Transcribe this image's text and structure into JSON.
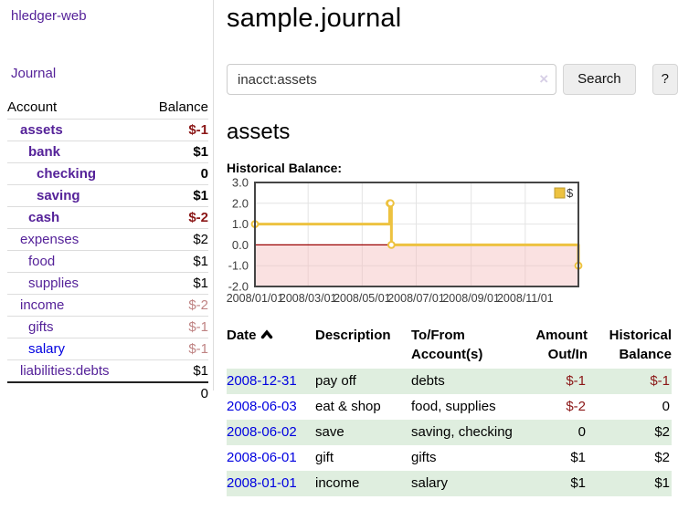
{
  "brand": "hledger-web",
  "sidebar": {
    "journal_link": "Journal",
    "header": {
      "account": "Account",
      "balance": "Balance"
    },
    "accounts": [
      {
        "name": "assets",
        "indent": 1,
        "bold": true,
        "balance": "$-1",
        "neg": "strong"
      },
      {
        "name": "bank",
        "indent": 2,
        "bold": true,
        "balance": "$1",
        "neg": "none"
      },
      {
        "name": "checking",
        "indent": 3,
        "bold": true,
        "balance": "0",
        "neg": "none"
      },
      {
        "name": "saving",
        "indent": 3,
        "bold": true,
        "balance": "$1",
        "neg": "none"
      },
      {
        "name": "cash",
        "indent": 2,
        "bold": true,
        "balance": "$-2",
        "neg": "strong"
      },
      {
        "name": "expenses",
        "indent": 1,
        "bold": false,
        "balance": "$2",
        "neg": "none"
      },
      {
        "name": "food",
        "indent": 2,
        "bold": false,
        "balance": "$1",
        "neg": "none"
      },
      {
        "name": "supplies",
        "indent": 2,
        "bold": false,
        "balance": "$1",
        "neg": "none"
      },
      {
        "name": "income",
        "indent": 1,
        "bold": false,
        "balance": "$-2",
        "neg": "soft"
      },
      {
        "name": "gifts",
        "indent": 2,
        "bold": false,
        "balance": "$-1",
        "neg": "soft"
      },
      {
        "name": "salary",
        "indent": 2,
        "bold": false,
        "balance": "$-1",
        "neg": "soft",
        "blue": true
      },
      {
        "name": "liabilities:debts",
        "indent": 1,
        "bold": false,
        "balance": "$1",
        "neg": "none"
      }
    ],
    "total": "0"
  },
  "main": {
    "title": "sample.journal",
    "search": {
      "value": "inacct:assets",
      "clear_icon": "×",
      "search_button": "Search",
      "help_button": "?"
    },
    "account_heading": "assets",
    "chart_title": "Historical Balance:"
  },
  "chart_data": {
    "type": "line",
    "step": true,
    "title": "Historical Balance of assets",
    "legend": [
      {
        "label": "$",
        "color": "#EDC240"
      }
    ],
    "x": [
      "2008-01-01",
      "2008-06-01",
      "2008-06-02",
      "2008-06-03",
      "2008-12-31"
    ],
    "y": [
      1,
      2,
      2,
      0,
      -1
    ],
    "x_ticks": [
      "2008/01/01",
      "2008/03/01",
      "2008/05/01",
      "2008/07/01",
      "2008/09/01",
      "2008/11/01"
    ],
    "y_ticks": [
      "3.0",
      "2.0",
      "1.0",
      "0.0",
      "-1.0",
      "-2.0"
    ],
    "xlim": [
      "2008-01-01",
      "2008-12-31"
    ],
    "ylim": [
      -2,
      3
    ],
    "grid": true,
    "legend_position": "top-right",
    "line_color": "#EDC240",
    "zero_line_color": "#9A0000",
    "negative_fill": "#F5BCBC"
  },
  "register": {
    "columns": [
      {
        "line1": "Date",
        "line2": "",
        "align": "left",
        "sorted": true
      },
      {
        "line1": "Description",
        "line2": "",
        "align": "left",
        "sorted": false
      },
      {
        "line1": "To/From",
        "line2": "Account(s)",
        "align": "left",
        "sorted": false
      },
      {
        "line1": "Amount",
        "line2": "Out/In",
        "align": "right",
        "sorted": false
      },
      {
        "line1": "Historical",
        "line2": "Balance",
        "align": "right",
        "sorted": false
      }
    ],
    "rows": [
      {
        "date": "2008-12-31",
        "description": "pay off",
        "accounts": "debts",
        "amount": "$-1",
        "amount_negative": true,
        "balance": "$-1",
        "balance_negative": true
      },
      {
        "date": "2008-06-03",
        "description": "eat & shop",
        "accounts": "food, supplies",
        "amount": "$-2",
        "amount_negative": true,
        "balance": "0",
        "balance_negative": false
      },
      {
        "date": "2008-06-02",
        "description": "save",
        "accounts": "saving, checking",
        "amount": "0",
        "amount_negative": false,
        "balance": "$2",
        "balance_negative": false
      },
      {
        "date": "2008-06-01",
        "description": "gift",
        "accounts": "gifts",
        "amount": "$1",
        "amount_negative": false,
        "balance": "$2",
        "balance_negative": false
      },
      {
        "date": "2008-01-01",
        "description": "income",
        "accounts": "salary",
        "amount": "$1",
        "amount_negative": false,
        "balance": "$1",
        "balance_negative": false
      }
    ]
  },
  "colors": {
    "link_purple": "#552299",
    "link_blue": "#0000E0",
    "negative_strong": "#8B1717",
    "negative_soft": "#BF8383",
    "row_stripe_green": "#DFEEDF",
    "chart_line": "#EDC240"
  }
}
